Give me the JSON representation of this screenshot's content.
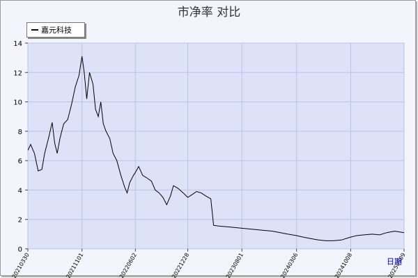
{
  "chart_data": {
    "type": "line",
    "title": "市净率 对比",
    "xlabel": "日期",
    "ylabel": "",
    "ylim": [
      0,
      14
    ],
    "y_ticks": [
      0,
      2,
      4,
      6,
      8,
      10,
      12,
      14
    ],
    "x_ticks": [
      "20210330",
      "20211101",
      "20220602",
      "20221228",
      "20230801",
      "20240306",
      "20241008",
      "20250509"
    ],
    "grid": true,
    "legend": "top-left",
    "colors": {
      "line": "#000000",
      "plot_bg": "#dde2f8",
      "grid": "#b8c4e8"
    },
    "series": [
      {
        "name": "嘉元科技",
        "points": [
          [
            "20210330",
            6.7
          ],
          [
            "20210410",
            7.1
          ],
          [
            "20210425",
            6.5
          ],
          [
            "20210510",
            5.3
          ],
          [
            "20210525",
            5.4
          ],
          [
            "20210605",
            6.5
          ],
          [
            "20210620",
            7.5
          ],
          [
            "20210705",
            8.6
          ],
          [
            "20210715",
            7.2
          ],
          [
            "20210725",
            6.5
          ],
          [
            "20210805",
            7.5
          ],
          [
            "20210820",
            8.5
          ],
          [
            "20210905",
            8.8
          ],
          [
            "20210920",
            9.8
          ],
          [
            "20211005",
            11.0
          ],
          [
            "20211020",
            11.8
          ],
          [
            "20211101",
            13.1
          ],
          [
            "20211110",
            12.0
          ],
          [
            "20211120",
            10.2
          ],
          [
            "20211201",
            12.0
          ],
          [
            "20211215",
            11.2
          ],
          [
            "20211225",
            9.5
          ],
          [
            "20220105",
            9.0
          ],
          [
            "20220115",
            10.0
          ],
          [
            "20220125",
            8.5
          ],
          [
            "20220205",
            8.0
          ],
          [
            "20220220",
            7.5
          ],
          [
            "20220305",
            6.5
          ],
          [
            "20220320",
            6.0
          ],
          [
            "20220405",
            5.0
          ],
          [
            "20220420",
            4.2
          ],
          [
            "20220430",
            3.8
          ],
          [
            "20220510",
            4.5
          ],
          [
            "20220525",
            5.0
          ],
          [
            "20220602",
            5.2
          ],
          [
            "20220615",
            5.6
          ],
          [
            "20220701",
            5.0
          ],
          [
            "20220720",
            4.8
          ],
          [
            "20220805",
            4.6
          ],
          [
            "20220820",
            4.0
          ],
          [
            "20220905",
            3.8
          ],
          [
            "20220920",
            3.5
          ],
          [
            "20221005",
            3.0
          ],
          [
            "20221020",
            3.6
          ],
          [
            "20221101",
            4.3
          ],
          [
            "20221120",
            4.1
          ],
          [
            "20221210",
            3.8
          ],
          [
            "20221228",
            3.5
          ],
          [
            "20230115",
            3.7
          ],
          [
            "20230201",
            3.9
          ],
          [
            "20230220",
            3.8
          ],
          [
            "20230310",
            3.6
          ],
          [
            "20230330",
            3.4
          ],
          [
            "20230410",
            1.6
          ],
          [
            "20230501",
            1.55
          ],
          [
            "20230601",
            1.5
          ],
          [
            "20230701",
            1.45
          ],
          [
            "20230801",
            1.4
          ],
          [
            "20230901",
            1.35
          ],
          [
            "20231001",
            1.3
          ],
          [
            "20231101",
            1.25
          ],
          [
            "20231201",
            1.2
          ],
          [
            "20240101",
            1.1
          ],
          [
            "20240201",
            1.0
          ],
          [
            "20240306",
            0.9
          ],
          [
            "20240401",
            0.8
          ],
          [
            "20240501",
            0.7
          ],
          [
            "20240601",
            0.6
          ],
          [
            "20240701",
            0.55
          ],
          [
            "20240801",
            0.55
          ],
          [
            "20240901",
            0.6
          ],
          [
            "20241008",
            0.8
          ],
          [
            "20241101",
            0.9
          ],
          [
            "20241201",
            0.95
          ],
          [
            "20250101",
            1.0
          ],
          [
            "20250201",
            0.95
          ],
          [
            "20250301",
            1.1
          ],
          [
            "20250401",
            1.2
          ],
          [
            "20250509",
            1.1
          ],
          [
            "20250520",
            1.05
          ]
        ]
      }
    ]
  }
}
